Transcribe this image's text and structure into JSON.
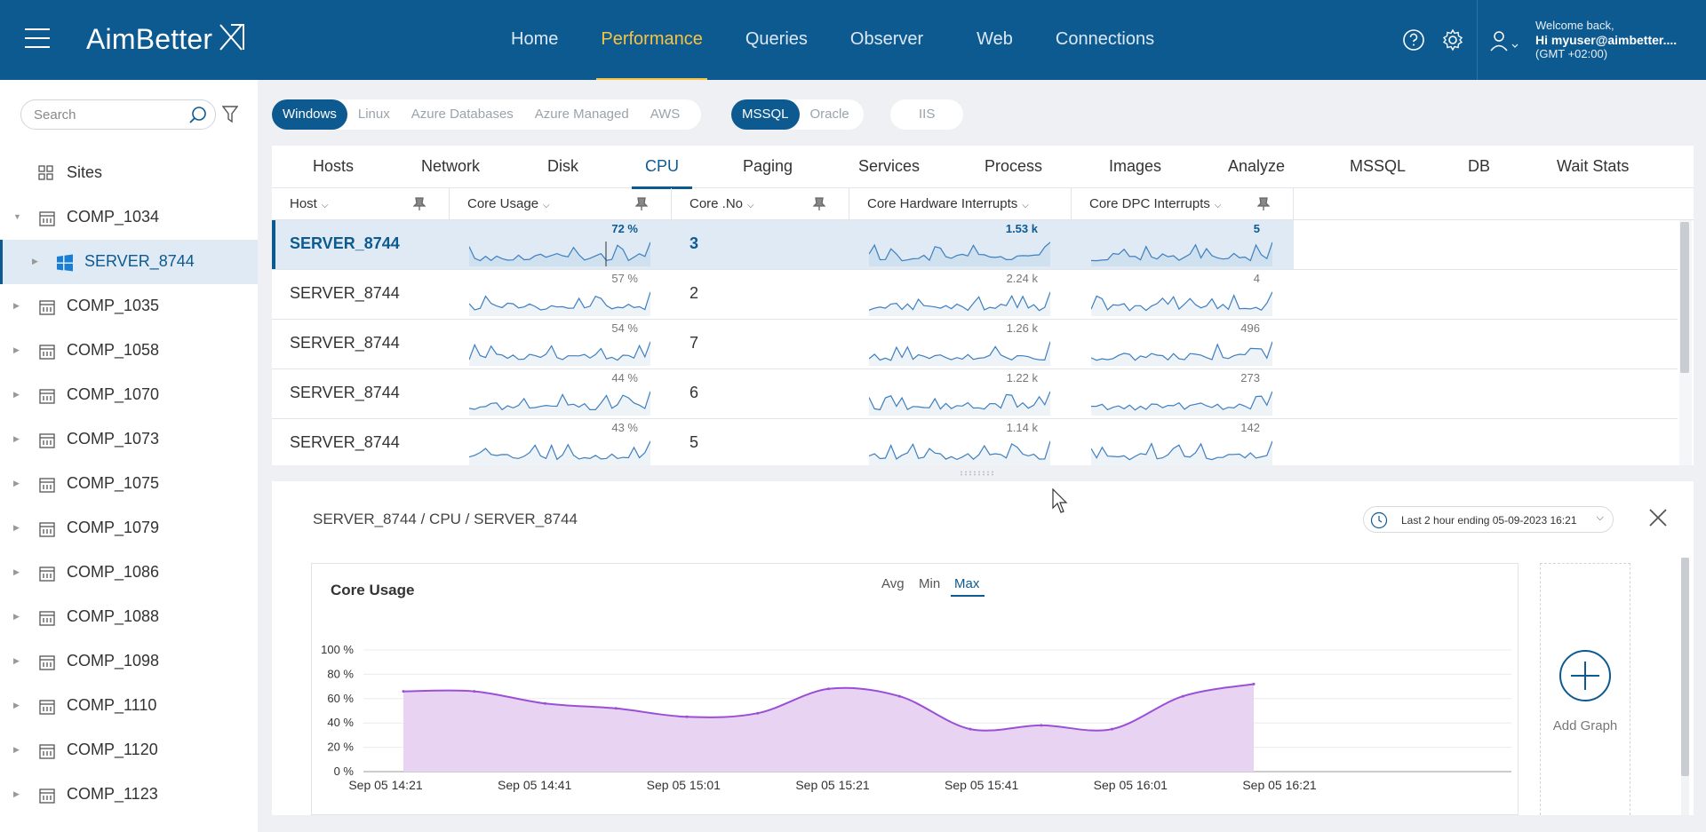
{
  "header": {
    "logo": "AimBetter",
    "nav": [
      "Home",
      "Performance",
      "Queries",
      "Observer",
      "Web",
      "Connections"
    ],
    "active_nav": "Performance",
    "welcome": "Welcome back,",
    "user": "Hi myuser@aimbetter....",
    "timezone": "(GMT +02:00)"
  },
  "sidebar": {
    "search_placeholder": "Search",
    "sites_label": "Sites",
    "tree": [
      "COMP_1034",
      "SERVER_8744",
      "COMP_1035",
      "COMP_1058",
      "COMP_1070",
      "COMP_1073",
      "COMP_1075",
      "COMP_1079",
      "COMP_1086",
      "COMP_1088",
      "COMP_1098",
      "COMP_1110",
      "COMP_1120",
      "COMP_1123"
    ]
  },
  "platform_filters": [
    "Windows",
    "Linux",
    "Azure Databases",
    "Azure Managed",
    "AWS"
  ],
  "db_filters": [
    "MSSQL",
    "Oracle"
  ],
  "web_filter": "IIS",
  "tabs": [
    "Hosts",
    "Network",
    "Disk",
    "CPU",
    "Paging",
    "Services",
    "Process",
    "Images",
    "Analyze",
    "MSSQL",
    "DB",
    "Wait Stats"
  ],
  "active_tab": "CPU",
  "columns": [
    "Host",
    "Core Usage",
    "Core .No",
    "Core Hardware Interrupts",
    "Core DPC Interrupts"
  ],
  "rows": [
    {
      "host": "SERVER_8744",
      "usage": "72 %",
      "core": "3",
      "hw": "1.53 k",
      "dpc": "5"
    },
    {
      "host": "SERVER_8744",
      "usage": "57 %",
      "core": "2",
      "hw": "2.24 k",
      "dpc": "4"
    },
    {
      "host": "SERVER_8744",
      "usage": "54 %",
      "core": "7",
      "hw": "1.26 k",
      "dpc": "496"
    },
    {
      "host": "SERVER_8744",
      "usage": "44 %",
      "core": "6",
      "hw": "1.22 k",
      "dpc": "273"
    },
    {
      "host": "SERVER_8744",
      "usage": "43 %",
      "core": "5",
      "hw": "1.14 k",
      "dpc": "142"
    }
  ],
  "detail": {
    "breadcrumb": "SERVER_8744 / CPU / SERVER_8744",
    "time_range": "Last 2 hour ending  05-09-2023 16:21",
    "graph_title": "Core Usage",
    "aggregations": [
      "Avg",
      "Min",
      "Max"
    ],
    "active_aggregation": "Max",
    "add_graph": "Add Graph"
  },
  "colors": {
    "brand": "#0d5a91",
    "active_nav": "#f6c344",
    "area_fill": "#e9d3f2",
    "area_line": "#9b4fd6",
    "spark_line": "#3e7fc0"
  },
  "chart_data": {
    "type": "area",
    "title": "Core Usage",
    "x": [
      "Sep 05 14:21",
      "Sep 05 14:31",
      "Sep 05 14:41",
      "Sep 05 14:51",
      "Sep 05 15:01",
      "Sep 05 15:11",
      "Sep 05 15:21",
      "Sep 05 15:31",
      "Sep 05 15:41",
      "Sep 05 15:51",
      "Sep 05 16:01",
      "Sep 05 16:11",
      "Sep 05 16:21"
    ],
    "x_tick_labels": [
      "Sep 05 14:21",
      "Sep 05 14:41",
      "Sep 05 15:01",
      "Sep 05 15:21",
      "Sep 05 15:41",
      "Sep 05 16:01",
      "Sep 05 16:21"
    ],
    "values": [
      66,
      66,
      56,
      52,
      45,
      48,
      68,
      62,
      35,
      38,
      35,
      62,
      72
    ],
    "y_tick_labels": [
      "100 %",
      "80 %",
      "60 %",
      "40 %",
      "20 %",
      "0 %"
    ],
    "ylim": [
      0,
      100
    ],
    "grid": true
  }
}
